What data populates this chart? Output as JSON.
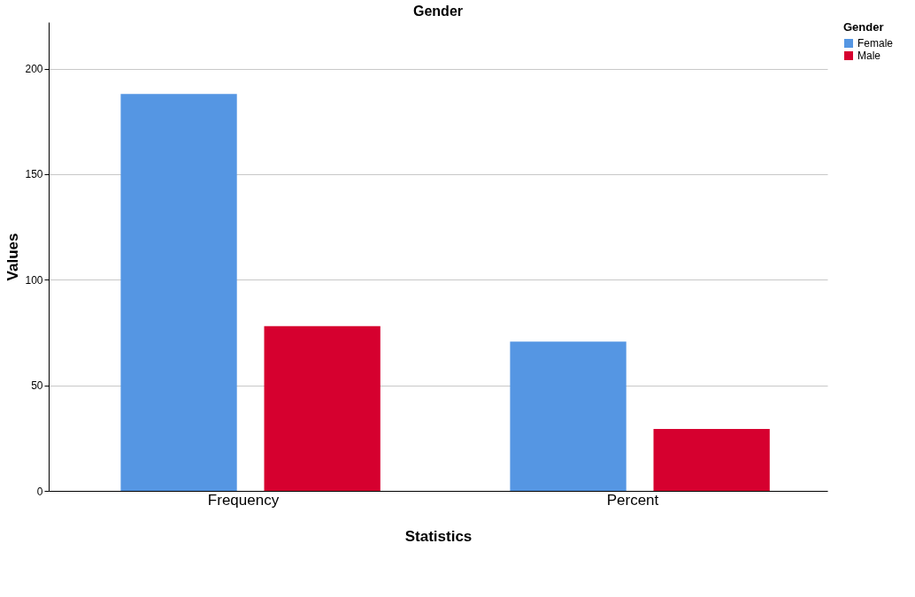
{
  "chart_data": {
    "type": "bar",
    "title": "Gender",
    "xlabel": "Statistics",
    "ylabel": "Values",
    "legend_title": "Gender",
    "categories": [
      "Frequency",
      "Percent"
    ],
    "series": [
      {
        "name": "Female",
        "color": "#5596e3",
        "values": [
          188,
          70.7
        ]
      },
      {
        "name": "Male",
        "color": "#d6002f",
        "values": [
          78,
          29.3
        ]
      }
    ],
    "ylim": [
      0,
      222
    ],
    "yticks": [
      0,
      50,
      100,
      150,
      200
    ],
    "grid": "y",
    "legend": "top right"
  }
}
